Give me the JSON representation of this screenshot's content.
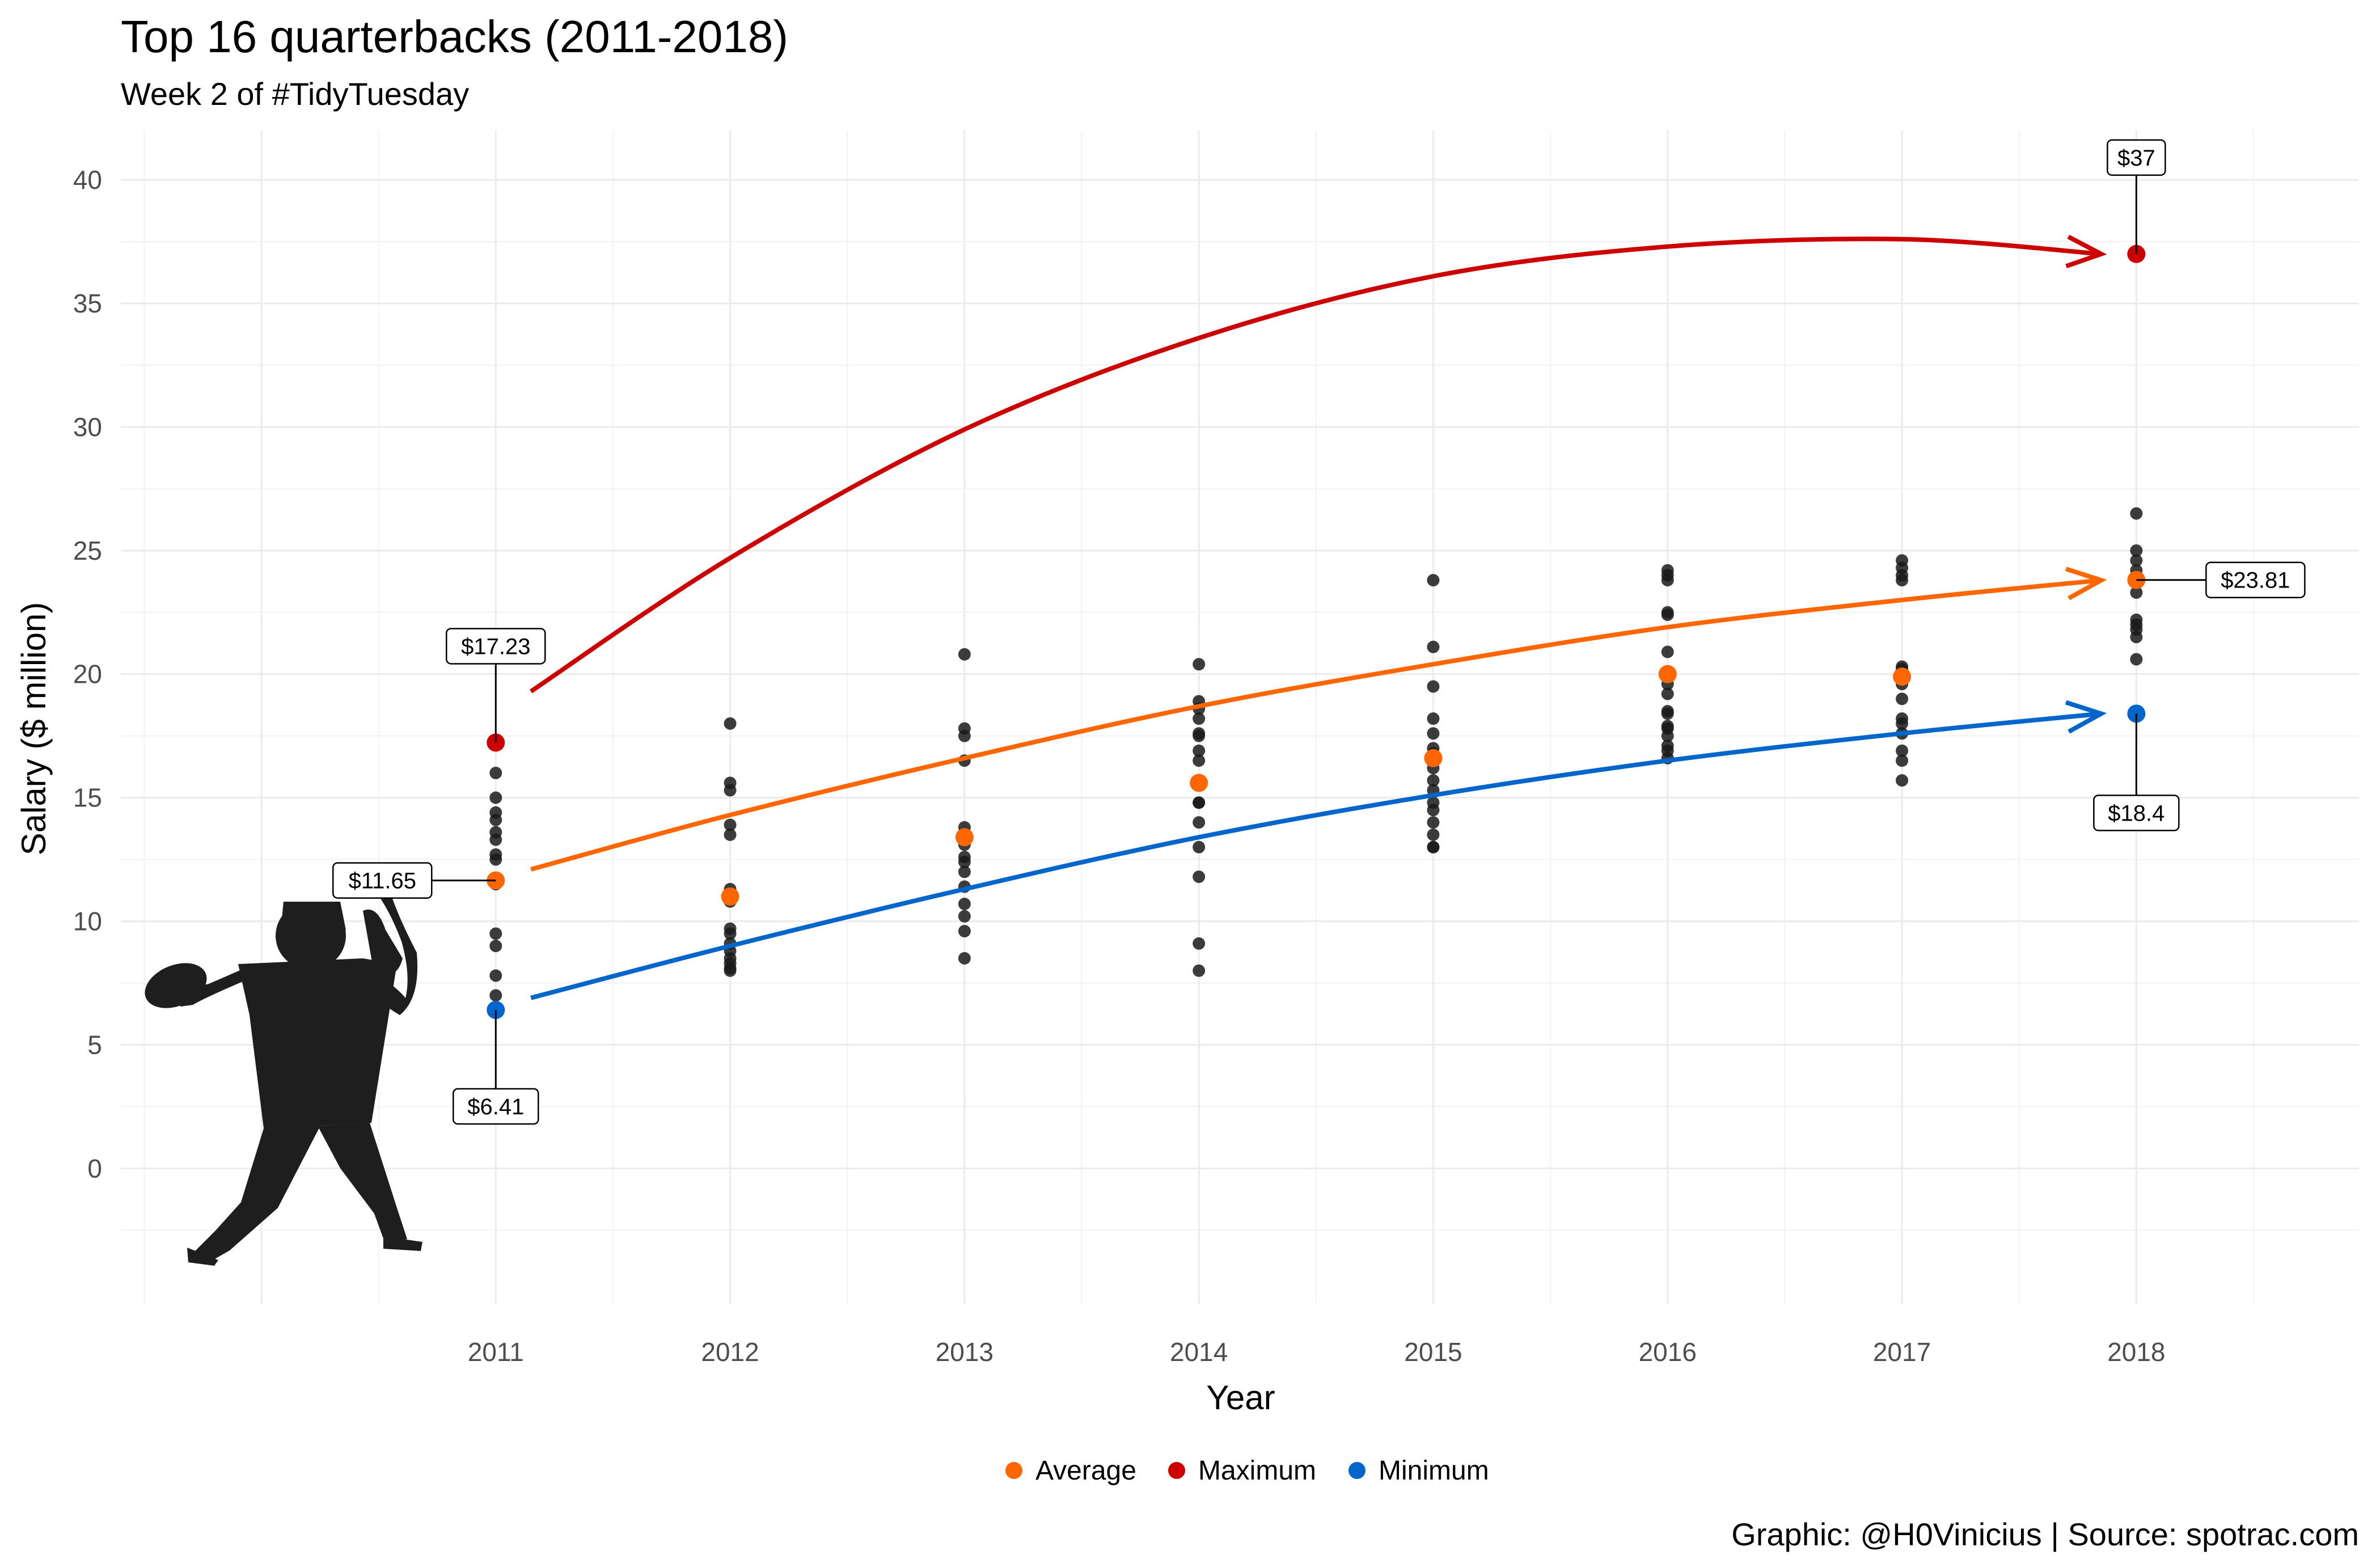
{
  "chart_data": {
    "type": "scatter",
    "title": "Top 16 quarterbacks (2011-2018)",
    "subtitle": "Week 2 of #TidyTuesday",
    "xlabel": "Year",
    "ylabel": "Salary ($ million)",
    "caption": "Graphic: @H0Vinicius | Source: spotrac.com",
    "x_ticks": [
      2011,
      2012,
      2013,
      2014,
      2015,
      2016,
      2017,
      2018
    ],
    "y_ticks": [
      0,
      5,
      10,
      15,
      20,
      25,
      30,
      35,
      40
    ],
    "xlim": [
      2009.4,
      2018.95
    ],
    "ylim": [
      -5.5,
      42
    ],
    "grid": true,
    "legend_position": "bottom",
    "points": [
      {
        "year": 2011,
        "values": [
          17.2,
          16.0,
          15.0,
          14.4,
          14.1,
          13.6,
          13.3,
          12.7,
          12.5,
          11.5,
          9.5,
          9.0,
          7.8,
          7.0,
          6.4
        ]
      },
      {
        "year": 2012,
        "values": [
          18.0,
          15.6,
          15.3,
          13.9,
          13.5,
          11.3,
          11.0,
          10.8,
          9.7,
          9.5,
          9.1,
          8.8,
          8.5,
          8.3,
          8.1,
          8.0
        ]
      },
      {
        "year": 2013,
        "values": [
          20.8,
          17.8,
          17.5,
          16.5,
          13.8,
          13.5,
          13.1,
          12.6,
          12.4,
          12.0,
          11.4,
          10.7,
          10.2,
          9.6,
          8.5
        ]
      },
      {
        "year": 2014,
        "values": [
          20.4,
          18.9,
          18.6,
          18.2,
          17.6,
          17.5,
          16.9,
          16.5,
          15.6,
          14.8,
          14.8,
          14.0,
          13.0,
          11.8,
          9.1,
          8.0
        ]
      },
      {
        "year": 2015,
        "values": [
          23.8,
          21.1,
          19.5,
          18.2,
          17.6,
          17.0,
          16.8,
          16.2,
          15.7,
          15.3,
          14.8,
          14.5,
          14.0,
          13.5,
          13.0,
          13.0
        ]
      },
      {
        "year": 2016,
        "values": [
          24.2,
          24.0,
          23.8,
          22.5,
          22.4,
          20.9,
          19.6,
          19.2,
          18.5,
          18.4,
          17.9,
          17.8,
          17.5,
          17.1,
          16.9,
          16.6
        ]
      },
      {
        "year": 2017,
        "values": [
          24.6,
          24.3,
          24.0,
          23.8,
          20.3,
          20.2,
          19.9,
          19.6,
          19.0,
          18.2,
          18.0,
          17.6,
          16.9,
          16.5,
          15.7
        ]
      },
      {
        "year": 2018,
        "values": [
          26.5,
          25.0,
          24.6,
          24.2,
          23.8,
          23.3,
          22.2,
          22.0,
          21.8,
          21.5,
          20.6,
          18.4
        ]
      }
    ],
    "series": [
      {
        "name": "Average",
        "color": "#FF6600",
        "values": [
          11.65,
          11.0,
          13.4,
          15.6,
          16.6,
          20.0,
          19.9,
          23.81
        ],
        "trend": [
          12.1,
          14.3,
          16.6,
          18.7,
          20.4,
          21.9,
          23.0,
          23.8
        ]
      },
      {
        "name": "Maximum",
        "color": "#CC0000",
        "values": [
          17.23,
          null,
          null,
          null,
          null,
          null,
          null,
          37.0
        ],
        "trend": [
          19.3,
          24.7,
          29.9,
          33.6,
          36.1,
          37.3,
          37.6,
          37.0
        ]
      },
      {
        "name": "Minimum",
        "color": "#0066CC",
        "values": [
          6.41,
          null,
          null,
          null,
          null,
          null,
          null,
          18.4
        ],
        "trend": [
          6.9,
          9.0,
          11.3,
          13.4,
          15.1,
          16.5,
          17.6,
          18.4
        ]
      }
    ],
    "annotations": [
      {
        "label": "$17.23",
        "year": 2011,
        "value": 17.23
      },
      {
        "label": "$11.65",
        "year": 2011,
        "value": 11.65
      },
      {
        "label": "$6.41",
        "year": 2011,
        "value": 6.41
      },
      {
        "label": "$37",
        "year": 2018,
        "value": 37.0
      },
      {
        "label": "$23.81",
        "year": 2018,
        "value": 23.81
      },
      {
        "label": "$18.4",
        "year": 2018,
        "value": 18.4
      }
    ],
    "legend": [
      "Average",
      "Maximum",
      "Minimum"
    ],
    "point_color": "#1a1a1a"
  }
}
